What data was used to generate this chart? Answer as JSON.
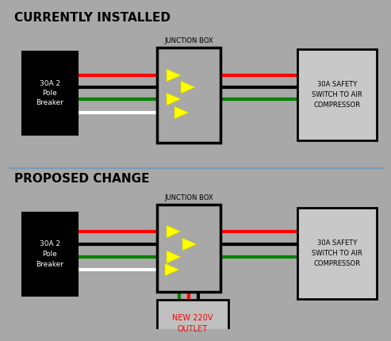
{
  "bg_color": "#a8a8a8",
  "title1": "CURRENTLY INSTALLED",
  "title2": "PROPOSED CHANGE",
  "junction_box_label": "JUNCTION BOX",
  "breaker_label": "30A 2\nPole\nBreaker",
  "compressor_label": "30A SAFETY\nSWITCH TO AIR\nCOMPRESSOR",
  "outlet_label": "NEW 220V\nOUTLET",
  "wire_colors": [
    "red",
    "black",
    "green",
    "white"
  ],
  "wire_linewidth": 3.0,
  "divider_color": "#7799bb",
  "divider_lw": 1.5,
  "compressor_bg": "#c8c8c8",
  "outlet_bg": "#c0c0c0"
}
